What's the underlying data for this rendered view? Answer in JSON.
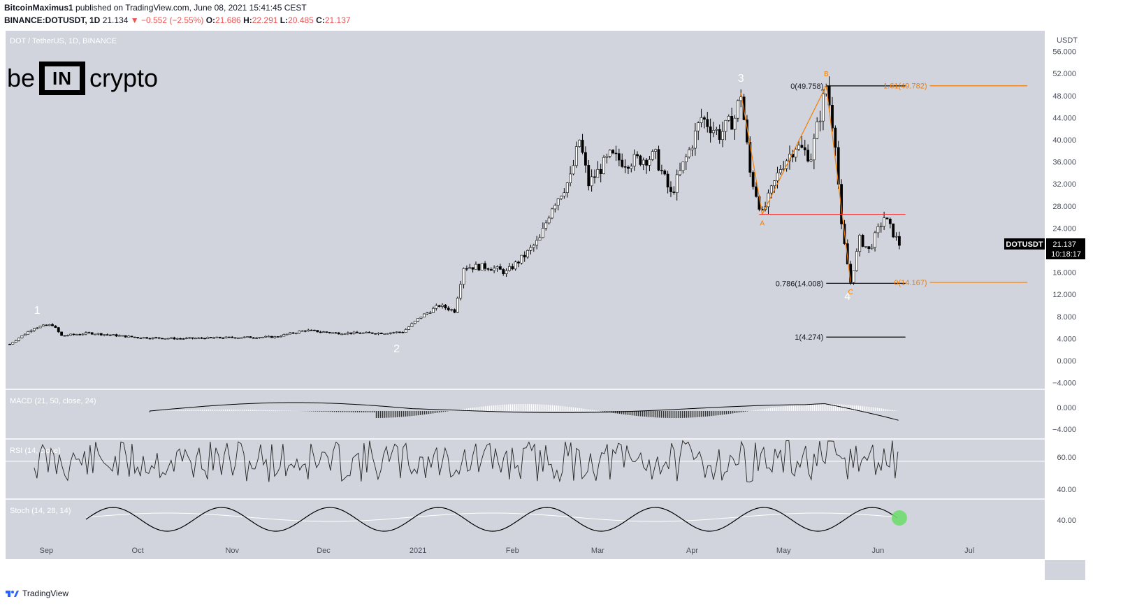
{
  "header": {
    "publisher_user": "BitcoinMaximus1",
    "publisher_rest": "published on TradingView.com, June 08, 2021 15:41:45 CEST",
    "symbol_line": "BINANCE:DOTUSDT, 1D",
    "last": "21.134",
    "change": "▼ −0.552 (−2.55%)",
    "o_label": "O:",
    "o_value": "21.686",
    "h_label": "H:",
    "h_value": "22.291",
    "l_label": "L:",
    "l_value": "20.485",
    "c_label": "C:",
    "c_value": "21.137"
  },
  "logo": {
    "left": "be",
    "box": "IN",
    "right": "crypto"
  },
  "footer": {
    "brand": "TradingView"
  },
  "colors": {
    "background": "#d1d4dc",
    "orange": "#f57c00",
    "red": "#ef3b3b",
    "candle_up": "#ffffff",
    "candle_down": "#000000",
    "badge": "#000000"
  },
  "chart_data": {
    "type": "candlestick",
    "title": "DOT / TetherUS, 1D, BINANCE",
    "currency": "USDT",
    "y_ticks": [
      "56.000",
      "52.000",
      "48.000",
      "44.000",
      "40.000",
      "36.000",
      "32.000",
      "28.000",
      "24.000",
      "20.000",
      "16.000",
      "12.000",
      "8.000",
      "4.000",
      "0.000",
      "−4.000"
    ],
    "y_range": [
      -4,
      56
    ],
    "x_tick_labels": [
      "Sep",
      "Oct",
      "Nov",
      "Dec",
      "2021",
      "Feb",
      "Mar",
      "Apr",
      "May",
      "Jun",
      "Jul"
    ],
    "x_tick_dates": [
      "2020-09-01",
      "2020-10-01",
      "2020-11-01",
      "2020-12-01",
      "2021-01-01",
      "2021-02-01",
      "2021-03-01",
      "2021-04-01",
      "2021-05-01",
      "2021-06-01",
      "2021-07-01"
    ],
    "x_range": [
      "2020-08-20",
      "2021-07-20"
    ],
    "price_points": [
      [
        "2020-08-20",
        3.0
      ],
      [
        "2020-08-28",
        6.0
      ],
      [
        "2020-09-03",
        6.5
      ],
      [
        "2020-09-06",
        4.5
      ],
      [
        "2020-09-15",
        5.0
      ],
      [
        "2020-10-01",
        4.2
      ],
      [
        "2020-10-15",
        4.0
      ],
      [
        "2020-11-01",
        4.2
      ],
      [
        "2020-11-15",
        4.3
      ],
      [
        "2020-11-25",
        5.5
      ],
      [
        "2020-12-05",
        5.0
      ],
      [
        "2020-12-20",
        5.0
      ],
      [
        "2020-12-27",
        5.2
      ],
      [
        "2021-01-02",
        8.0
      ],
      [
        "2021-01-08",
        10.0
      ],
      [
        "2021-01-13",
        9.0
      ],
      [
        "2021-01-16",
        17.0
      ],
      [
        "2021-01-24",
        17.0
      ],
      [
        "2021-01-30",
        16.0
      ],
      [
        "2021-02-05",
        19.0
      ],
      [
        "2021-02-10",
        22.0
      ],
      [
        "2021-02-14",
        28.0
      ],
      [
        "2021-02-20",
        33.0
      ],
      [
        "2021-02-23",
        40.0
      ],
      [
        "2021-02-26",
        32.0
      ],
      [
        "2021-03-05",
        37.0
      ],
      [
        "2021-03-10",
        36.0
      ],
      [
        "2021-03-20",
        37.0
      ],
      [
        "2021-03-25",
        30.0
      ],
      [
        "2021-03-31",
        38.0
      ],
      [
        "2021-04-04",
        44.0
      ],
      [
        "2021-04-10",
        41.0
      ],
      [
        "2021-04-15",
        44.0
      ],
      [
        "2021-04-17",
        48.5
      ],
      [
        "2021-04-20",
        34.0
      ],
      [
        "2021-04-24",
        26.5
      ],
      [
        "2021-04-30",
        35.0
      ],
      [
        "2021-05-05",
        39.0
      ],
      [
        "2021-05-10",
        37.0
      ],
      [
        "2021-05-15",
        49.8
      ],
      [
        "2021-05-18",
        40.0
      ],
      [
        "2021-05-20",
        24.0
      ],
      [
        "2021-05-23",
        14.2
      ],
      [
        "2021-05-26",
        22.0
      ],
      [
        "2021-05-29",
        20.0
      ],
      [
        "2021-06-03",
        26.0
      ],
      [
        "2021-06-08",
        21.1
      ]
    ],
    "wave_labels": [
      {
        "label": "1",
        "date": "2020-08-29",
        "value": 8.5
      },
      {
        "label": "2",
        "date": "2020-12-25",
        "value": 1.5
      },
      {
        "label": "3",
        "date": "2021-04-17",
        "value": 50.5
      },
      {
        "label": "4",
        "date": "2021-05-22",
        "value": 11.0
      }
    ],
    "abc_labels": [
      {
        "label": "A",
        "date": "2021-04-24",
        "value": 24.5
      },
      {
        "label": "B",
        "date": "2021-05-15",
        "value": 51.5
      },
      {
        "label": "C",
        "date": "2021-05-23",
        "value": 12.0
      }
    ],
    "abc_path": [
      [
        "2021-04-17",
        48.5
      ],
      [
        "2021-04-24",
        26.5
      ],
      [
        "2021-05-15",
        49.8
      ],
      [
        "2021-05-23",
        14.2
      ]
    ],
    "fib_black": [
      {
        "label": "0(49.758)",
        "value": 49.758,
        "from": "2021-05-15",
        "to": "2021-06-10"
      },
      {
        "label": "0.786(14.008)",
        "value": 14.008,
        "from": "2021-05-15",
        "to": "2021-06-10"
      },
      {
        "label": "1(4.274)",
        "value": 4.274,
        "from": "2021-05-15",
        "to": "2021-06-10"
      }
    ],
    "fib_orange": [
      {
        "label": "1.61(49.782)",
        "value": 49.782,
        "from": "2021-06-18",
        "to": "2021-07-20"
      },
      {
        "label": "0(14.167)",
        "value": 14.167,
        "from": "2021-06-18",
        "to": "2021-07-20"
      }
    ],
    "resistance": {
      "value": 26.5,
      "from": "2021-04-23",
      "to": "2021-06-10"
    },
    "last_badge": {
      "symbol": "DOTUSDT",
      "price": "21.137",
      "countdown": "10:18:17"
    },
    "indicators": [
      {
        "name": "MACD (21, 50, close, 24)",
        "ticks": [
          "0.000",
          "−4.000"
        ]
      },
      {
        "name": "RSI (14, close)",
        "ticks": [
          "60.00",
          "40.00"
        ]
      },
      {
        "name": "Stoch (14, 28, 14)",
        "ticks": [
          "40.00"
        ]
      }
    ]
  }
}
